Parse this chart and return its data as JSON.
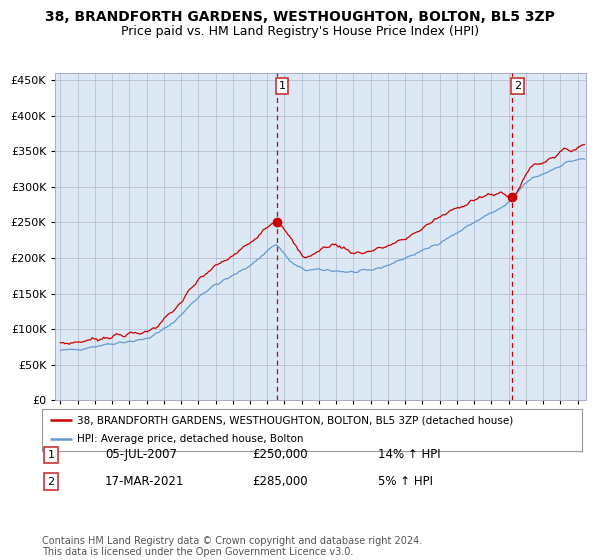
{
  "title": "38, BRANDFORTH GARDENS, WESTHOUGHTON, BOLTON, BL5 3ZP",
  "subtitle": "Price paid vs. HM Land Registry's House Price Index (HPI)",
  "legend_line1": "38, BRANDFORTH GARDENS, WESTHOUGHTON, BOLTON, BL5 3ZP (detached house)",
  "legend_line2": "HPI: Average price, detached house, Bolton",
  "annotation1_date": "05-JUL-2007",
  "annotation1_price": "£250,000",
  "annotation1_hpi": "14% ↑ HPI",
  "annotation2_date": "17-MAR-2021",
  "annotation2_price": "£285,000",
  "annotation2_hpi": "5% ↑ HPI",
  "footer": "Contains HM Land Registry data © Crown copyright and database right 2024.\nThis data is licensed under the Open Government Licence v3.0.",
  "red_color": "#cc0000",
  "blue_color": "#6699cc",
  "bg_color": "#dce9f5",
  "grid_color": "#b0b8d0",
  "box_color": "#cc3333",
  "marker1_x": 2007.55,
  "marker1_y": 250000,
  "marker2_x": 2021.2,
  "marker2_y": 285000,
  "vline1_x": 2007.55,
  "vline2_x": 2021.2,
  "ylim": [
    0,
    460000
  ],
  "xlim_start": 1994.7,
  "xlim_end": 2025.5,
  "yticks": [
    0,
    50000,
    100000,
    150000,
    200000,
    250000,
    300000,
    350000,
    400000,
    450000
  ],
  "ytick_labels": [
    "£0",
    "£50K",
    "£100K",
    "£150K",
    "£200K",
    "£250K",
    "£300K",
    "£350K",
    "£400K",
    "£450K"
  ],
  "hpi_key_x": [
    1995.0,
    1996.0,
    1997.0,
    1998.0,
    1999.0,
    2000.0,
    2001.0,
    2002.0,
    2003.0,
    2004.0,
    2005.0,
    2006.0,
    2007.0,
    2007.5,
    2008.0,
    2009.0,
    2010.0,
    2011.0,
    2012.0,
    2013.0,
    2014.0,
    2015.0,
    2016.0,
    2017.0,
    2018.0,
    2019.0,
    2020.0,
    2021.0,
    2022.0,
    2023.0,
    2024.0,
    2025.0,
    2025.4
  ],
  "hpi_key_y": [
    70000,
    72000,
    76000,
    80000,
    83000,
    87000,
    100000,
    120000,
    145000,
    162000,
    175000,
    190000,
    210000,
    218000,
    205000,
    185000,
    183000,
    182000,
    180000,
    183000,
    190000,
    200000,
    210000,
    222000,
    235000,
    250000,
    263000,
    278000,
    305000,
    318000,
    330000,
    338000,
    338000
  ],
  "red_key_x": [
    1995.0,
    1996.0,
    1997.0,
    1998.0,
    1999.0,
    2000.0,
    2001.0,
    2002.0,
    2003.0,
    2004.0,
    2005.0,
    2006.0,
    2007.0,
    2007.55,
    2008.0,
    2008.5,
    2009.0,
    2010.0,
    2011.0,
    2012.0,
    2013.0,
    2014.0,
    2015.0,
    2016.0,
    2017.0,
    2018.0,
    2019.0,
    2020.0,
    2021.0,
    2021.2,
    2022.0,
    2023.0,
    2024.0,
    2025.0,
    2025.4
  ],
  "red_key_y": [
    80000,
    82000,
    86000,
    90000,
    93000,
    97000,
    113000,
    138000,
    168000,
    188000,
    203000,
    222000,
    245000,
    250000,
    238000,
    222000,
    205000,
    210000,
    218000,
    208000,
    210000,
    217000,
    227000,
    242000,
    257000,
    270000,
    282000,
    288000,
    288000,
    285000,
    318000,
    335000,
    348000,
    355000,
    360000
  ]
}
